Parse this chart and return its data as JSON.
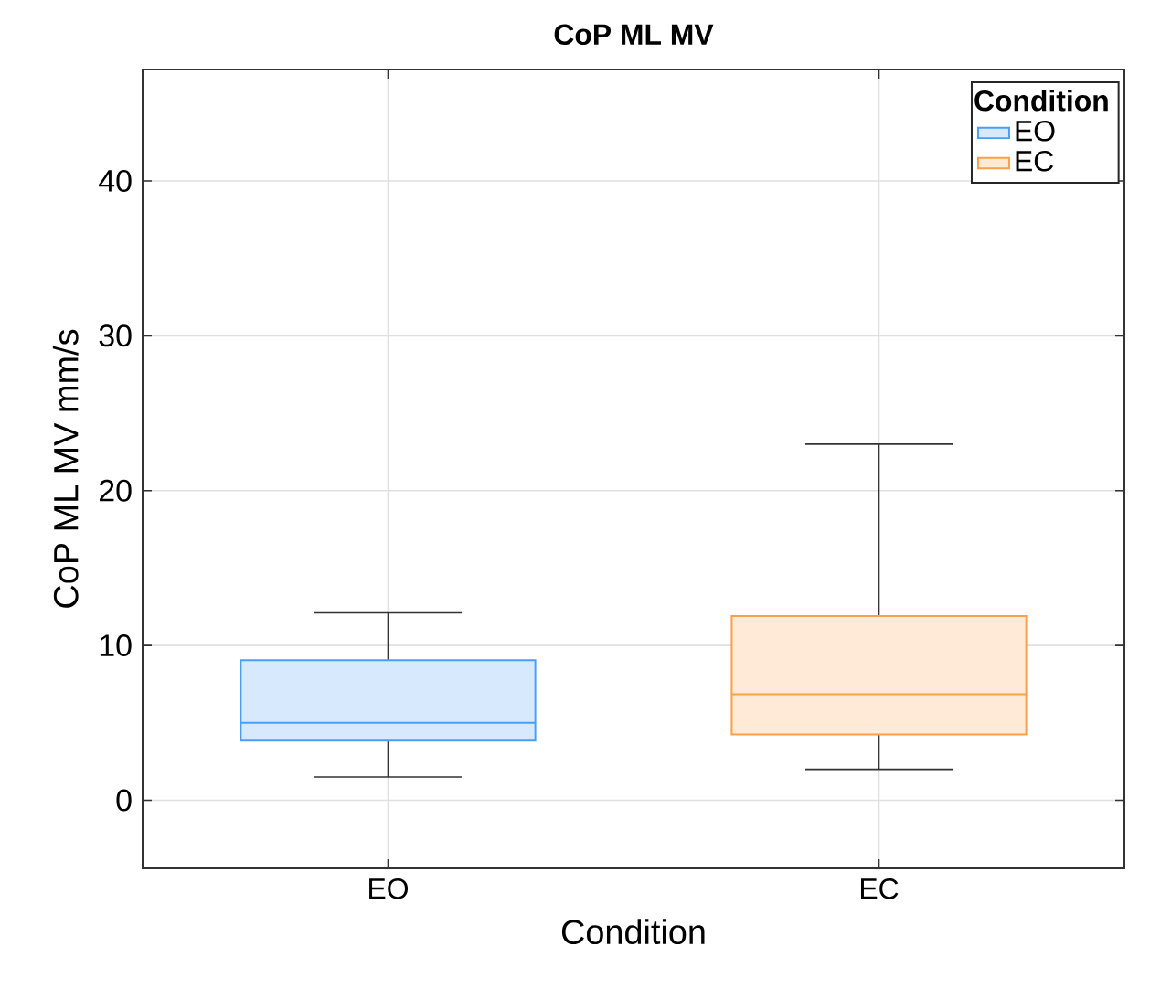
{
  "chart_data": {
    "type": "box",
    "title": "CoP ML MV",
    "xlabel": "Condition",
    "ylabel": "CoP ML MV mm/s",
    "legend_title": "Condition",
    "categories": [
      "EO",
      "EC"
    ],
    "series": [
      {
        "name": "EO",
        "color": "#4a9ff5",
        "boxes": [
          {
            "low": 1.5,
            "q1": 3.85,
            "median": 5.0,
            "q3": 9.05,
            "high": 12.1
          },
          null
        ]
      },
      {
        "name": "EC",
        "color": "#f9a04a",
        "boxes": [
          null,
          {
            "low": 2.0,
            "q1": 4.25,
            "median": 6.85,
            "q3": 11.9,
            "high": 23.0
          }
        ]
      }
    ],
    "ylim": [
      -4.4,
      47.2
    ],
    "yticks": [
      0,
      10,
      20,
      30,
      40
    ],
    "grid": true,
    "legend": "top right"
  }
}
